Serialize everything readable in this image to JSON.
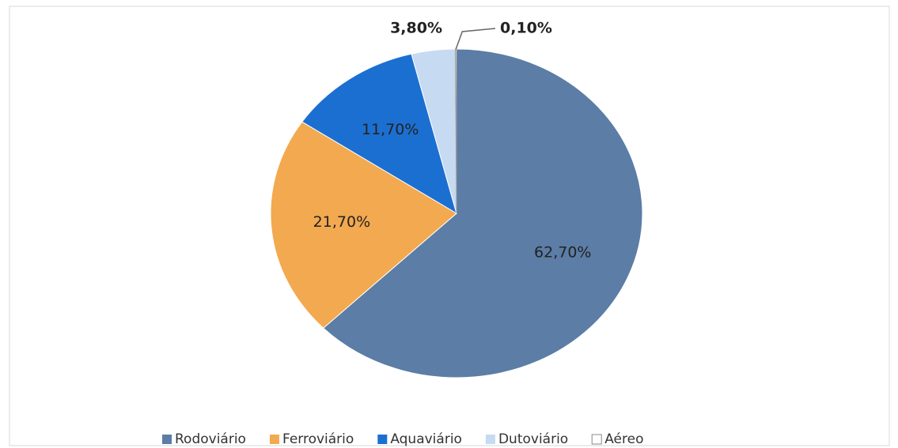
{
  "chart_data": {
    "type": "pie",
    "categories": [
      "Rodoviário",
      "Ferroviário",
      "Aquaviário",
      "Dutoviário",
      "Aéreo"
    ],
    "values": [
      62.7,
      21.7,
      11.7,
      3.8,
      0.1
    ],
    "value_labels": [
      "62,70%",
      "21,70%",
      "11,70%",
      "3,80%",
      "0,10%"
    ],
    "colors": [
      "#5b7da6",
      "#f3a94f",
      "#1b6fd1",
      "#c6daf1",
      "#ffffff"
    ],
    "legend": "bottom"
  }
}
